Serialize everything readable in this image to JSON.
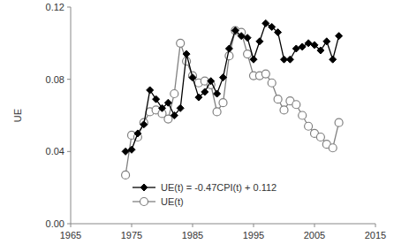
{
  "chart_data": {
    "type": "line",
    "y_label": "UE",
    "x": [
      1974,
      1975,
      1976,
      1977,
      1978,
      1979,
      1980,
      1981,
      1982,
      1983,
      1984,
      1985,
      1986,
      1987,
      1988,
      1989,
      1990,
      1991,
      1992,
      1993,
      1994,
      1995,
      1996,
      1997,
      1998,
      1999,
      2000,
      2001,
      2002,
      2003,
      2004,
      2005,
      2006,
      2007,
      2008,
      2009
    ],
    "series": [
      {
        "name": "UE(t) = -0.47CPI(t) + 0.112",
        "color": "#000000",
        "marker": "diamond",
        "line_style": "solid",
        "values": [
          0.04,
          0.041,
          0.05,
          0.055,
          0.074,
          0.069,
          0.064,
          0.067,
          0.06,
          0.064,
          0.094,
          0.081,
          0.07,
          0.073,
          0.079,
          0.072,
          0.081,
          0.097,
          0.107,
          0.104,
          0.103,
          0.091,
          0.101,
          0.111,
          0.109,
          0.106,
          0.091,
          0.091,
          0.097,
          0.098,
          0.1,
          0.099,
          0.096,
          0.101,
          0.091,
          0.104
        ]
      },
      {
        "name": "UE(t)",
        "color": "#808080",
        "marker": "circle",
        "line_style": "solid",
        "values": [
          0.027,
          0.049,
          0.048,
          0.056,
          0.062,
          0.063,
          0.061,
          0.058,
          0.072,
          0.1,
          0.09,
          0.082,
          0.078,
          0.079,
          0.077,
          0.062,
          0.067,
          0.093,
          0.107,
          0.106,
          0.094,
          0.082,
          0.082,
          0.083,
          0.078,
          0.069,
          0.063,
          0.068,
          0.066,
          0.06,
          0.054,
          0.05,
          0.048,
          0.044,
          0.042,
          0.056
        ]
      }
    ],
    "xlim": [
      1965,
      2015
    ],
    "xticks": [
      1965,
      1975,
      1985,
      1995,
      2005,
      2015
    ],
    "ylim": [
      0,
      0.12
    ],
    "yticks": [
      {
        "value": 0,
        "label": "0.00"
      },
      0.04,
      0.08,
      0.12
    ],
    "grid": false,
    "legend": "bottom"
  }
}
